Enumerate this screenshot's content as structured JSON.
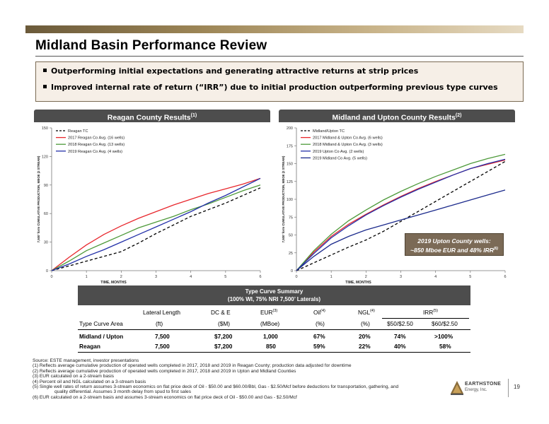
{
  "title": "Midland Basin Performance Review",
  "bullets": [
    "Outperforming initial expectations and generating attractive returns at strip prices",
    "Improved internal rate of return (“IRR”) due to initial production outperforming previous type curves"
  ],
  "chart_data": [
    {
      "type": "line",
      "title": "Reagan County Results",
      "title_note": "(1)",
      "xlabel": "TIME, MONTHS",
      "ylabel": "7,500’ form CUMULATIVE PRODUCTION, MBOE (2 STREAM)",
      "xlim": [
        0,
        6
      ],
      "ylim": [
        0,
        150
      ],
      "xticks": [
        0,
        1,
        2,
        3,
        4,
        5,
        6
      ],
      "yticks": [
        0,
        30,
        60,
        90,
        120,
        150
      ],
      "legend_position": "top-left",
      "series": [
        {
          "name": "Reagan TC",
          "color": "#000000",
          "dashed": true,
          "x": [
            0,
            0.5,
            1,
            1.5,
            2,
            2.5,
            3,
            3.5,
            4,
            4.5,
            5,
            5.5,
            6
          ],
          "y": [
            0,
            5,
            10,
            15,
            20,
            29,
            39,
            48,
            57,
            64,
            71,
            79,
            87
          ]
        },
        {
          "name": "2017 Reagan Co Avg. (16 wells)",
          "color": "#e8272d",
          "dashed": false,
          "x": [
            0,
            0.5,
            1,
            1.5,
            2,
            2.5,
            3,
            3.5,
            4,
            4.5,
            5,
            5.5,
            6
          ],
          "y": [
            0,
            14,
            27,
            38,
            47,
            55,
            62,
            69,
            75,
            81,
            86,
            91,
            97
          ]
        },
        {
          "name": "2018 Reagan Co Avg. (13 wells)",
          "color": "#4e9a3a",
          "dashed": false,
          "x": [
            0,
            0.5,
            1,
            1.5,
            2,
            2.5,
            3,
            3.5,
            4,
            4.5,
            5,
            5.5,
            6
          ],
          "y": [
            0,
            10,
            21,
            29,
            37,
            45,
            51,
            57,
            64,
            70,
            77,
            84,
            90
          ]
        },
        {
          "name": "2019 Reagan Co Avg. (4 wells)",
          "color": "#2330a8",
          "dashed": false,
          "x": [
            0,
            0.5,
            1,
            1.5,
            2,
            2.5,
            3,
            3.5,
            4,
            4.5,
            5,
            5.5,
            6
          ],
          "y": [
            0,
            7,
            15,
            22,
            30,
            38,
            46,
            54,
            62,
            71,
            79,
            88,
            97
          ]
        }
      ]
    },
    {
      "type": "line",
      "title": "Midland and Upton County Results",
      "title_note": "(2)",
      "xlabel": "TIME, MONTHS",
      "ylabel": "7,500’ form CUMULATIVE PRODUCTION, MBOE (2 STREAM)",
      "xlim": [
        0,
        6
      ],
      "ylim": [
        0,
        200
      ],
      "xticks": [
        0,
        1,
        2,
        3,
        4,
        5,
        6
      ],
      "yticks": [
        0,
        25,
        50,
        75,
        100,
        125,
        150,
        175,
        200
      ],
      "legend_position": "top-left",
      "series": [
        {
          "name": "Midland/Upton TC",
          "color": "#000000",
          "dashed": true,
          "x": [
            0,
            0.5,
            1,
            1.5,
            2,
            2.5,
            3,
            3.5,
            4,
            4.5,
            5,
            5.5,
            6
          ],
          "y": [
            0,
            11,
            22,
            33,
            43,
            55,
            69,
            83,
            97,
            111,
            125,
            139,
            153
          ]
        },
        {
          "name": "2017 Midland & Upton Co Avg. (6 wells)",
          "color": "#e8272d",
          "dashed": false,
          "x": [
            0,
            0.5,
            1,
            1.5,
            2,
            2.5,
            3,
            3.5,
            4,
            4.5,
            5,
            5.5,
            6
          ],
          "y": [
            0,
            26,
            48,
            65,
            79,
            92,
            104,
            115,
            125,
            134,
            143,
            149,
            155
          ]
        },
        {
          "name": "2018 Midland & Upton Co Avg. (3 wells)",
          "color": "#4e9a3a",
          "dashed": false,
          "x": [
            0,
            0.5,
            1,
            1.5,
            2,
            2.5,
            3,
            3.5,
            4,
            4.5,
            5,
            5.5,
            6
          ],
          "y": [
            0,
            28,
            51,
            70,
            85,
            99,
            111,
            122,
            132,
            141,
            150,
            157,
            163
          ]
        },
        {
          "name": "2019 Upton Co Avg. (2 wells)",
          "color": "#2330a8",
          "dashed": false,
          "x": [
            0,
            0.5,
            1,
            1.5,
            2,
            2.5,
            3,
            3.5,
            4,
            4.5,
            5,
            5.5,
            6
          ],
          "y": [
            0,
            24,
            46,
            63,
            78,
            91,
            103,
            114,
            124,
            134,
            143,
            150,
            156
          ]
        },
        {
          "name": "2019 Midland Co Avg. (5 wells)",
          "color": "#1b2a8c",
          "dashed": false,
          "x": [
            0,
            0.5,
            1,
            1.5,
            2,
            2.5,
            3,
            3.5,
            4,
            4.5,
            5,
            5.5,
            6
          ],
          "y": [
            0,
            20,
            37,
            48,
            57,
            64,
            71,
            78,
            85,
            92,
            99,
            106,
            113
          ]
        }
      ]
    }
  ],
  "callout": {
    "line1": "2019 Upton County wells:",
    "line2": "~850 Mboe EUR and 48% IRR",
    "note": "(6)"
  },
  "table": {
    "title": "Type Curve Summary",
    "subtitle": "(100% WI, 75% NRI 7,500’ Laterals)",
    "headers": {
      "area": "Type Curve Area",
      "lateral": "Lateral Length",
      "lateral_unit": "(ft)",
      "dc": "DC & E",
      "dc_unit": "($M)",
      "eur": "EUR",
      "eur_note": "(3)",
      "eur_unit": "(MBoe)",
      "oil": "Oil",
      "oil_note": "(4)",
      "oil_unit": "(%)",
      "ngl": "NGL",
      "ngl_note": "(4)",
      "ngl_unit": "(%)",
      "irr": "IRR",
      "irr_note": "(5)",
      "irr_a": "$50/$2.50",
      "irr_b": "$60/$2.50"
    },
    "rows": [
      {
        "area": "Midland / Upton",
        "lateral": "7,500",
        "dc": "$7,200",
        "eur": "1,000",
        "oil": "67%",
        "ngl": "20%",
        "irr_a": "74%",
        "irr_b": ">100%"
      },
      {
        "area": "Reagan",
        "lateral": "7,500",
        "dc": "$7,200",
        "eur": "850",
        "oil": "59%",
        "ngl": "22%",
        "irr_a": "40%",
        "irr_b": "58%"
      }
    ]
  },
  "footnotes": [
    "Source: ESTE management, investor presentations",
    "(1)   Reflects average cumulative production of operated wells completed in 2017, 2018 and 2019 in Reagan County; production data adjusted for downtime",
    "(2)   Reflects average cumulative production of operated wells completed in 2017, 2018 and 2019 in Upton and Midland Counties",
    "(3)   EUR calculated on a 2-stream basis",
    "(4)   Percent oil and NGL calculated on a 3-stream basis",
    "(5)   Single well rates of return assumes 3-stream economics on flat price deck of Oil - $50.00 and $60.00/Bbl, Gas - $2.50/Mcf before deductions for transportation, gathering, and",
    "quality differential. Assumes 3 month delay from spud to first sales",
    "(6)   EUR calculated on a 2-stream basis and assumes 3-stream economics on flat price deck of Oil - $50.00 and Gas - $2.50/Mcf"
  ],
  "logo": {
    "name": "EARTHSTONE",
    "sub": "Energy, Inc."
  },
  "page_number": "19"
}
